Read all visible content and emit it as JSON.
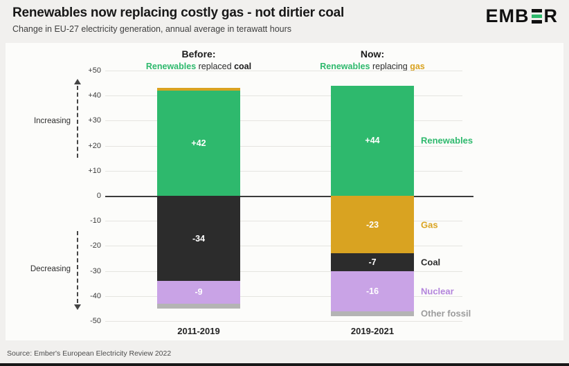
{
  "header": {
    "title": "Renewables now replacing costly gas - not dirtier coal",
    "subtitle": "Change in EU-27 electricity generation, annual average in terawatt hours",
    "logo_pre": "EMB",
    "logo_post": "R"
  },
  "columns": [
    {
      "title": "Before:",
      "parts": [
        "Renewables",
        "replaced",
        "coal"
      ]
    },
    {
      "title": "Now:",
      "parts": [
        "Renewables",
        "replacing",
        "gas"
      ]
    }
  ],
  "annotations": {
    "increasing": "Increasing",
    "decreasing": "Decreasing"
  },
  "chart_data": {
    "type": "bar",
    "stacked": true,
    "title": "Renewables now replacing costly gas - not dirtier coal",
    "subtitle": "Change in EU-27 electricity generation, annual average in terawatt hours",
    "unit": "terawatt hours",
    "categories": [
      "2011-2019",
      "2019-2021"
    ],
    "series": [
      {
        "name": "Renewables",
        "color": "#2eb96d",
        "values": [
          42,
          44
        ],
        "labels": [
          "+42",
          "+44"
        ]
      },
      {
        "name": "Gas",
        "color": "#d9a321",
        "values": [
          1,
          -23
        ],
        "labels": [
          null,
          "-23"
        ]
      },
      {
        "name": "Coal",
        "color": "#2c2c2c",
        "values": [
          -34,
          -7
        ],
        "labels": [
          "-34",
          "-7"
        ]
      },
      {
        "name": "Nuclear",
        "color": "#c9a3e6",
        "label_color": "#b385dc",
        "values": [
          -9,
          -16
        ],
        "labels": [
          "-9",
          "-16"
        ]
      },
      {
        "name": "Other fossil",
        "color": "#b4b4b4",
        "label_color": "#9c9c9c",
        "values": [
          -2,
          -2
        ],
        "labels": [
          null,
          null
        ]
      }
    ],
    "ylim": [
      -50,
      50
    ],
    "yticks": [
      {
        "value": 50,
        "label": "+50"
      },
      {
        "value": 40,
        "label": "+40"
      },
      {
        "value": 30,
        "label": "+30"
      },
      {
        "value": 20,
        "label": "+20"
      },
      {
        "value": 10,
        "label": "+10"
      },
      {
        "value": 0,
        "label": "0"
      },
      {
        "value": -10,
        "label": "-10"
      },
      {
        "value": -20,
        "label": "-20"
      },
      {
        "value": -30,
        "label": "-30"
      },
      {
        "value": -40,
        "label": "-40"
      },
      {
        "value": -50,
        "label": "-50"
      }
    ],
    "grid": true,
    "legend_position": "right"
  },
  "footer": {
    "source": "Source: Ember's European Electricity Review 2022"
  }
}
